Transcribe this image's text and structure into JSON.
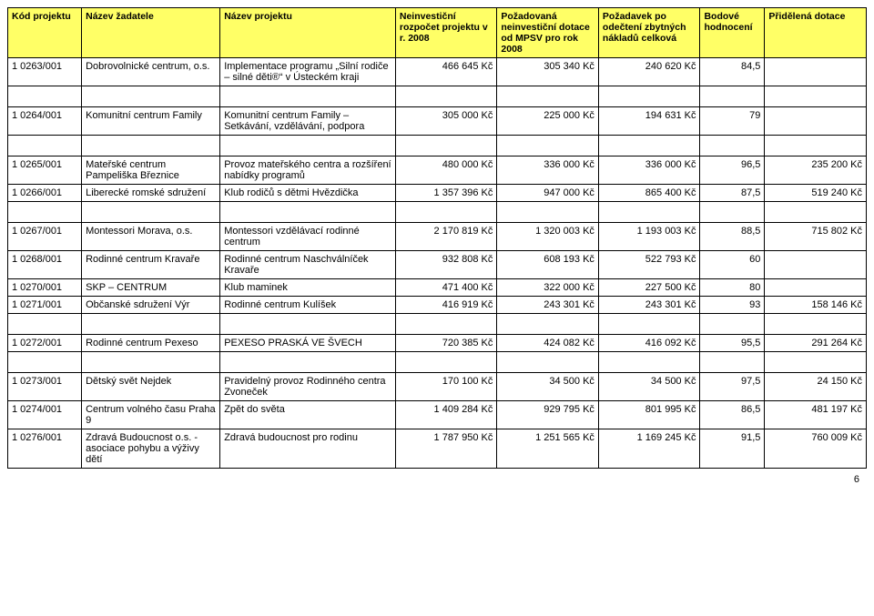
{
  "headers": [
    "Kód projektu",
    "Název žadatele",
    "Název projektu",
    "Neinvestiční rozpočet projektu v r. 2008",
    "Požadovaná neinvestiční dotace od MPSV pro rok 2008",
    "Požadavek po odečtení zbytných nákladů celková",
    "Bodové hodnocení",
    "Přidělená dotace"
  ],
  "rows": [
    {
      "c": [
        "1 0263/001",
        "Dobrovolnické centrum, o.s.",
        "Implementace programu „Silní rodiče – silné děti®“ v Ústeckém kraji",
        "466 645 Kč",
        "305 340 Kč",
        "240 620 Kč",
        "84,5",
        ""
      ]
    },
    {
      "c": [
        "1 0264/001",
        "Komunitní centrum Family",
        "Komunitní centrum Family – Setkávání, vzdělávání, podpora",
        "305 000 Kč",
        "225 000 Kč",
        "194 631 Kč",
        "79",
        ""
      ]
    },
    {
      "c": [
        "1 0265/001",
        "Mateřské centrum Pampeliška Březnice",
        "Provoz mateřského centra a rozšíření nabídky programů",
        "480 000 Kč",
        "336 000 Kč",
        "336 000 Kč",
        "96,5",
        "235 200 Kč"
      ]
    },
    {
      "c": [
        "1 0266/001",
        "Liberecké romské sdružení",
        "Klub rodičů s dětmi Hvězdička",
        "1 357 396 Kč",
        "947 000 Kč",
        "865 400 Kč",
        "87,5",
        "519 240 Kč"
      ]
    },
    {
      "c": [
        "1 0267/001",
        "Montessori Morava, o.s.",
        "Montessori vzdělávací rodinné centrum",
        "2 170 819 Kč",
        "1 320 003 Kč",
        "1 193 003 Kč",
        "88,5",
        "715 802 Kč"
      ]
    },
    {
      "c": [
        "1 0268/001",
        "Rodinné centrum Kravaře",
        "Rodinné centrum Naschválníček Kravaře",
        "932 808 Kč",
        "608 193 Kč",
        "522 793 Kč",
        "60",
        ""
      ]
    },
    {
      "c": [
        "1 0270/001",
        "SKP – CENTRUM",
        "Klub maminek",
        "471 400 Kč",
        "322 000 Kč",
        "227 500 Kč",
        "80",
        ""
      ]
    },
    {
      "c": [
        "1 0271/001",
        "Občanské sdružení Výr",
        "Rodinné centrum Kulíšek",
        "416 919 Kč",
        "243 301 Kč",
        "243 301 Kč",
        "93",
        "158 146 Kč"
      ]
    },
    {
      "c": [
        "1 0272/001",
        "Rodinné centrum Pexeso",
        "PEXESO PRASKÁ VE ŠVECH",
        "720 385 Kč",
        "424 082 Kč",
        "416 092 Kč",
        "95,5",
        "291 264 Kč"
      ]
    },
    {
      "c": [
        "1 0273/001",
        "Dětský svět Nejdek",
        "Pravidelný provoz Rodinného centra Zvoneček",
        "170 100 Kč",
        "34 500 Kč",
        "34 500 Kč",
        "97,5",
        "24 150 Kč"
      ]
    },
    {
      "c": [
        "1 0274/001",
        "Centrum volného času Praha 9",
        "Zpět do světa",
        "1 409 284 Kč",
        "929 795 Kč",
        "801 995 Kč",
        "86,5",
        "481 197 Kč"
      ]
    },
    {
      "c": [
        "1 0276/001",
        "Zdravá Budoucnost o.s. - asociace pohybu a výživy dětí",
        "Zdravá budoucnost pro rodinu",
        "1 787 950 Kč",
        "1 251 565 Kč",
        "1 169 245 Kč",
        "91,5",
        "760 009 Kč"
      ]
    }
  ],
  "spacerAfter": [
    0,
    1,
    3,
    7,
    8
  ],
  "pageNumber": "6",
  "colors": {
    "headerBg": "#ffff66",
    "border": "#000000",
    "background": "#ffffff"
  }
}
